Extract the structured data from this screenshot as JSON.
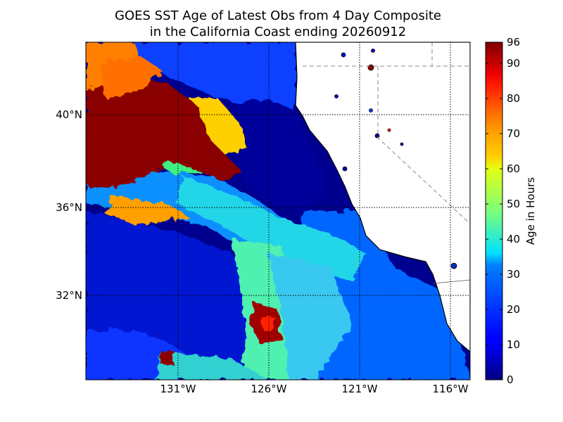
{
  "title_line1": "GOES SST Age of Latest Obs from 4 Day Composite",
  "title_line2": "in the California Coast ending 20260912",
  "map": {
    "lon_labels": [
      "131°W",
      "126°W",
      "121°W",
      "116°W"
    ],
    "lat_labels": [
      "40°N",
      "36°N",
      "32°N"
    ],
    "land_color": "#ffffff",
    "ocean_base_color": "#00008f"
  },
  "colorbar": {
    "label": "Age in Hours",
    "tick_labels": [
      "0",
      "10",
      "20",
      "30",
      "40",
      "50",
      "60",
      "70",
      "80",
      "90",
      "96"
    ],
    "min": 0,
    "max": 96,
    "colormap": "jet"
  }
}
